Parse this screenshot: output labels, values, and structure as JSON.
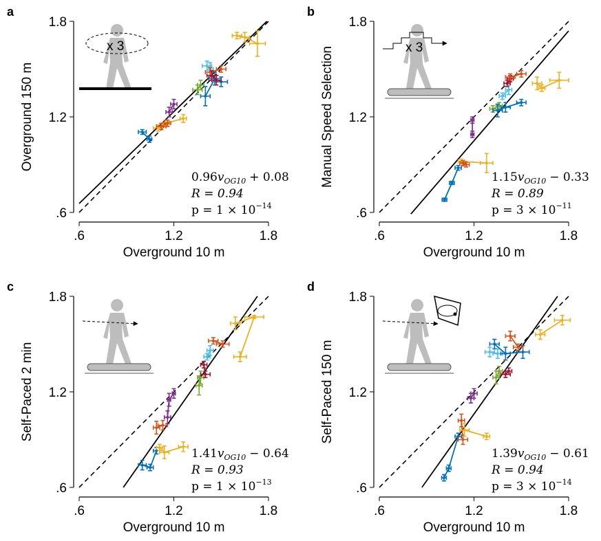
{
  "chart_data": [
    {
      "type": "scatter",
      "panel_label": "a",
      "icon_text": "x 3",
      "xlabel": "Overground 10 m",
      "ylabel": "Overground 150 m",
      "xlim": [
        0.6,
        1.8
      ],
      "ylim": [
        0.6,
        1.8
      ],
      "xticks": [
        {
          "value": 0.6,
          "label": ".6"
        },
        {
          "value": 1.2,
          "label": "1.2"
        },
        {
          "value": 1.8,
          "label": "1.8"
        }
      ],
      "yticks": [
        {
          "value": 0.6,
          "label": ".6"
        },
        {
          "value": 1.2,
          "label": "1.2"
        },
        {
          "value": 1.8,
          "label": "1.8"
        }
      ],
      "fit_line": {
        "x": [
          0.6,
          1.79
        ],
        "y": [
          0.656,
          1.8
        ]
      },
      "fit_coef": "0.96",
      "fit_var": "v",
      "fit_sub": "OG10",
      "fit_const": "+ 0.08",
      "r_text": "R = 0.94",
      "p_text": "p = 1 × 10",
      "p_exp": "−14",
      "series": [
        {
          "color": "#0072bd",
          "x": [
            1.0,
            1.045
          ],
          "y": [
            1.105,
            1.06
          ],
          "xerr": [
            0.025,
            0.015
          ],
          "yerr": [
            0.015,
            0.02
          ]
        },
        {
          "color": "#edb120",
          "x": [
            1.1,
            1.15,
            1.26
          ],
          "y": [
            1.13,
            1.16,
            1.19
          ],
          "xerr": [
            0.03,
            0.02,
            0.02
          ],
          "yerr": [
            0.02,
            0.02,
            0.025
          ]
        },
        {
          "color": "#d95319",
          "x": [
            1.12,
            1.16
          ],
          "y": [
            1.14,
            1.16
          ],
          "xerr": [
            0.03,
            0.02
          ],
          "yerr": [
            0.02,
            0.02
          ]
        },
        {
          "color": "#7e2f8e",
          "x": [
            1.17,
            1.2
          ],
          "y": [
            1.23,
            1.28
          ],
          "xerr": [
            0.02,
            0.02
          ],
          "yerr": [
            0.03,
            0.03
          ]
        },
        {
          "color": "#77ac30",
          "x": [
            1.35,
            1.37
          ],
          "y": [
            1.37,
            1.4
          ],
          "xerr": [
            0.03,
            0.02
          ],
          "yerr": [
            0.03,
            0.03
          ]
        },
        {
          "color": "#4dbeee",
          "x": [
            1.41,
            1.43
          ],
          "y": [
            1.52,
            1.5
          ],
          "xerr": [
            0.03,
            0.02
          ],
          "yerr": [
            0.03,
            0.04
          ]
        },
        {
          "color": "#d95319",
          "x": [
            1.43,
            1.5
          ],
          "y": [
            1.48,
            1.5
          ],
          "xerr": [
            0.03,
            0.03
          ],
          "yerr": [
            0.03,
            0.02
          ]
        },
        {
          "color": "#0072bd",
          "x": [
            1.4,
            1.46,
            1.5
          ],
          "y": [
            1.33,
            1.44,
            1.42
          ],
          "xerr": [
            0.03,
            0.04,
            0.04
          ],
          "yerr": [
            0.06,
            0.04,
            0.03
          ]
        },
        {
          "color": "#a2142f",
          "x": [
            1.44,
            1.47
          ],
          "y": [
            1.46,
            1.43
          ],
          "xerr": [
            0.03,
            0.03
          ],
          "yerr": [
            0.03,
            0.03
          ]
        },
        {
          "color": "#edb120",
          "x": [
            1.6,
            1.65,
            1.73
          ],
          "y": [
            1.71,
            1.7,
            1.66
          ],
          "xerr": [
            0.03,
            0.03,
            0.05
          ],
          "yerr": [
            0.02,
            0.03,
            0.08
          ]
        }
      ]
    },
    {
      "type": "scatter",
      "panel_label": "b",
      "icon_text": "x 3",
      "xlabel": "Overground 10 m",
      "ylabel": "Manual Speed Selection",
      "xlim": [
        0.6,
        1.8
      ],
      "ylim": [
        0.6,
        1.8
      ],
      "xticks": [
        {
          "value": 0.6,
          "label": ".6"
        },
        {
          "value": 1.2,
          "label": "1.2"
        },
        {
          "value": 1.8,
          "label": "1.8"
        }
      ],
      "yticks": [
        {
          "value": 0.6,
          "label": ".6"
        },
        {
          "value": 1.2,
          "label": "1.2"
        },
        {
          "value": 1.8,
          "label": "1.8"
        }
      ],
      "fit_line": {
        "x": [
          0.8,
          1.8
        ],
        "y": [
          0.59,
          1.74
        ]
      },
      "fit_coef": "1.15",
      "fit_var": "v",
      "fit_sub": "OG10",
      "fit_const": "− 0.33",
      "r_text": "R = 0.89",
      "p_text": "p = 3 × 10",
      "p_exp": "−11",
      "series": [
        {
          "color": "#0072bd",
          "x": [
            1.013,
            1.06,
            1.1
          ],
          "y": [
            0.68,
            0.785,
            0.88
          ],
          "xerr": [
            0.015,
            0.015,
            0.02
          ],
          "yerr": [
            0.01,
            0.01,
            0.015
          ]
        },
        {
          "color": "#edb120",
          "x": [
            1.12,
            1.28
          ],
          "y": [
            0.92,
            0.91
          ],
          "xerr": [
            0.02,
            0.04
          ],
          "yerr": [
            0.015,
            0.06
          ]
        },
        {
          "color": "#d95319",
          "x": [
            1.13,
            1.15
          ],
          "y": [
            0.91,
            0.9
          ],
          "xerr": [
            0.02,
            0.02
          ],
          "yerr": [
            0.015,
            0.015
          ]
        },
        {
          "color": "#7e2f8e",
          "x": [
            1.19,
            1.19
          ],
          "y": [
            1.18,
            1.09
          ],
          "xerr": [
            0.01,
            0.01
          ],
          "yerr": [
            0.02,
            0.02
          ]
        },
        {
          "color": "#77ac30",
          "x": [
            1.32,
            1.36
          ],
          "y": [
            1.25,
            1.27
          ],
          "xerr": [
            0.02,
            0.02
          ],
          "yerr": [
            0.02,
            0.02
          ]
        },
        {
          "color": "#4dbeee",
          "x": [
            1.38,
            1.42
          ],
          "y": [
            1.33,
            1.37
          ],
          "xerr": [
            0.02,
            0.02
          ],
          "yerr": [
            0.02,
            0.03
          ]
        },
        {
          "color": "#0072bd",
          "x": [
            1.35,
            1.4,
            1.5
          ],
          "y": [
            1.24,
            1.26,
            1.29
          ],
          "xerr": [
            0.03,
            0.03,
            0.03
          ],
          "yerr": [
            0.04,
            0.03,
            0.02
          ]
        },
        {
          "color": "#a2142f",
          "x": [
            1.41,
            1.43
          ],
          "y": [
            1.41,
            1.44
          ],
          "xerr": [
            0.02,
            0.02
          ],
          "yerr": [
            0.02,
            0.02
          ]
        },
        {
          "color": "#d95319",
          "x": [
            1.43,
            1.5
          ],
          "y": [
            1.45,
            1.47
          ],
          "xerr": [
            0.03,
            0.03
          ],
          "yerr": [
            0.02,
            0.02
          ]
        },
        {
          "color": "#edb120",
          "x": [
            1.6,
            1.63,
            1.74
          ],
          "y": [
            1.41,
            1.38,
            1.43
          ],
          "xerr": [
            0.03,
            0.02,
            0.06
          ],
          "yerr": [
            0.04,
            0.02,
            0.05
          ]
        }
      ]
    },
    {
      "type": "scatter",
      "panel_label": "c",
      "xlabel": "Overground 10 m",
      "ylabel": "Self-Paced 2 min",
      "xlim": [
        0.6,
        1.8
      ],
      "ylim": [
        0.6,
        1.8
      ],
      "xticks": [
        {
          "value": 0.6,
          "label": ".6"
        },
        {
          "value": 1.2,
          "label": "1.2"
        },
        {
          "value": 1.8,
          "label": "1.8"
        }
      ],
      "yticks": [
        {
          "value": 0.6,
          "label": ".6"
        },
        {
          "value": 1.2,
          "label": "1.2"
        },
        {
          "value": 1.8,
          "label": "1.8"
        }
      ],
      "fit_line": {
        "x": [
          0.88,
          1.73
        ],
        "y": [
          0.6,
          1.8
        ]
      },
      "fit_coef": "1.41",
      "fit_var": "v",
      "fit_sub": "OG10",
      "fit_const": "− 0.64",
      "r_text": "R = 0.93",
      "p_text": "p = 1 × 10",
      "p_exp": "−13",
      "series": [
        {
          "color": "#0072bd",
          "x": [
            1.0,
            1.05,
            1.09
          ],
          "y": [
            0.74,
            0.725,
            0.83
          ],
          "xerr": [
            0.025,
            0.02,
            0.02
          ],
          "yerr": [
            0.03,
            0.02,
            0.02
          ]
        },
        {
          "color": "#edb120",
          "x": [
            1.11,
            1.14,
            1.26
          ],
          "y": [
            0.85,
            0.82,
            0.855
          ],
          "xerr": [
            0.02,
            0.03,
            0.03
          ],
          "yerr": [
            0.02,
            0.04,
            0.03
          ]
        },
        {
          "color": "#d95319",
          "x": [
            1.09,
            1.13
          ],
          "y": [
            0.975,
            0.99
          ],
          "xerr": [
            0.02,
            0.03
          ],
          "yerr": [
            0.04,
            0.03
          ]
        },
        {
          "color": "#7e2f8e",
          "x": [
            1.16,
            1.17,
            1.2
          ],
          "y": [
            1.04,
            1.15,
            1.19
          ],
          "xerr": [
            0.02,
            0.01,
            0.01
          ],
          "yerr": [
            0.04,
            0.04,
            0.03
          ]
        },
        {
          "color": "#77ac30",
          "x": [
            1.36,
            1.37
          ],
          "y": [
            1.24,
            1.29
          ],
          "xerr": [
            0.02,
            0.02
          ],
          "yerr": [
            0.06,
            0.04
          ]
        },
        {
          "color": "#a2142f",
          "x": [
            1.4,
            1.39
          ],
          "y": [
            1.31,
            1.37
          ],
          "xerr": [
            0.03,
            0.02
          ],
          "yerr": [
            0.02,
            0.02
          ]
        },
        {
          "color": "#4dbeee",
          "x": [
            1.41,
            1.43
          ],
          "y": [
            1.42,
            1.46
          ],
          "xerr": [
            0.02,
            0.02
          ],
          "yerr": [
            0.02,
            0.03
          ]
        },
        {
          "color": "#d95319",
          "x": [
            1.45,
            1.51
          ],
          "y": [
            1.52,
            1.5
          ],
          "xerr": [
            0.03,
            0.04
          ],
          "yerr": [
            0.02,
            0.02
          ]
        },
        {
          "color": "#edb120",
          "x": [
            1.59,
            1.71,
            1.62
          ],
          "y": [
            1.63,
            1.67,
            1.42
          ],
          "xerr": [
            0.03,
            0.06,
            0.04
          ],
          "yerr": [
            0.04,
            0.01,
            0.03
          ]
        }
      ]
    },
    {
      "type": "scatter",
      "panel_label": "d",
      "xlabel": "Overground 10 m",
      "ylabel": "Self-Paced 150 m",
      "xlim": [
        0.6,
        1.8
      ],
      "ylim": [
        0.6,
        1.8
      ],
      "xticks": [
        {
          "value": 0.6,
          "label": ".6"
        },
        {
          "value": 1.2,
          "label": "1.2"
        },
        {
          "value": 1.8,
          "label": "1.8"
        }
      ],
      "yticks": [
        {
          "value": 0.6,
          "label": ".6"
        },
        {
          "value": 1.2,
          "label": "1.2"
        },
        {
          "value": 1.8,
          "label": "1.8"
        }
      ],
      "fit_line": {
        "x": [
          0.87,
          1.73
        ],
        "y": [
          0.6,
          1.8
        ]
      },
      "fit_coef": "1.39",
      "fit_var": "v",
      "fit_sub": "OG10",
      "fit_const": "− 0.61",
      "r_text": "R = 0.94",
      "p_text": "p = 3 × 10",
      "p_exp": "−14",
      "series": [
        {
          "color": "#0072bd",
          "x": [
            1.01,
            1.04,
            1.1
          ],
          "y": [
            0.66,
            0.72,
            0.92
          ],
          "xerr": [
            0.015,
            0.015,
            0.02
          ],
          "yerr": [
            0.02,
            0.02,
            0.02
          ]
        },
        {
          "color": "#d95319",
          "x": [
            1.13,
            1.12
          ],
          "y": [
            0.9,
            1.02
          ],
          "xerr": [
            0.03,
            0.02
          ],
          "yerr": [
            0.03,
            0.04
          ]
        },
        {
          "color": "#edb120",
          "x": [
            1.14,
            1.28
          ],
          "y": [
            0.96,
            0.92
          ],
          "xerr": [
            0.03,
            0.02
          ],
          "yerr": [
            0.04,
            0.02
          ]
        },
        {
          "color": "#7e2f8e",
          "x": [
            1.18,
            1.2
          ],
          "y": [
            1.16,
            1.19
          ],
          "xerr": [
            0.02,
            0.02
          ],
          "yerr": [
            0.03,
            0.03
          ]
        },
        {
          "color": "#77ac30",
          "x": [
            1.34,
            1.36
          ],
          "y": [
            1.29,
            1.33
          ],
          "xerr": [
            0.02,
            0.02
          ],
          "yerr": [
            0.04,
            0.03
          ]
        },
        {
          "color": "#a2142f",
          "x": [
            1.4,
            1.42
          ],
          "y": [
            1.31,
            1.33
          ],
          "xerr": [
            0.03,
            0.02
          ],
          "yerr": [
            0.02,
            0.02
          ]
        },
        {
          "color": "#4dbeee",
          "x": [
            1.3,
            1.35
          ],
          "y": [
            1.45,
            1.44
          ],
          "xerr": [
            0.03,
            0.03
          ],
          "yerr": [
            0.03,
            0.03
          ]
        },
        {
          "color": "#0072bd",
          "x": [
            1.33,
            1.4,
            1.51
          ],
          "y": [
            1.5,
            1.44,
            1.45
          ],
          "xerr": [
            0.03,
            0.03,
            0.04
          ],
          "yerr": [
            0.03,
            0.04,
            0.04
          ]
        },
        {
          "color": "#d95319",
          "x": [
            1.43,
            1.48
          ],
          "y": [
            1.55,
            1.48
          ],
          "xerr": [
            0.03,
            0.03
          ],
          "yerr": [
            0.03,
            0.02
          ]
        },
        {
          "color": "#edb120",
          "x": [
            1.62,
            1.76
          ],
          "y": [
            1.56,
            1.65
          ],
          "xerr": [
            0.03,
            0.05
          ],
          "yerr": [
            0.03,
            0.03
          ]
        }
      ]
    }
  ]
}
